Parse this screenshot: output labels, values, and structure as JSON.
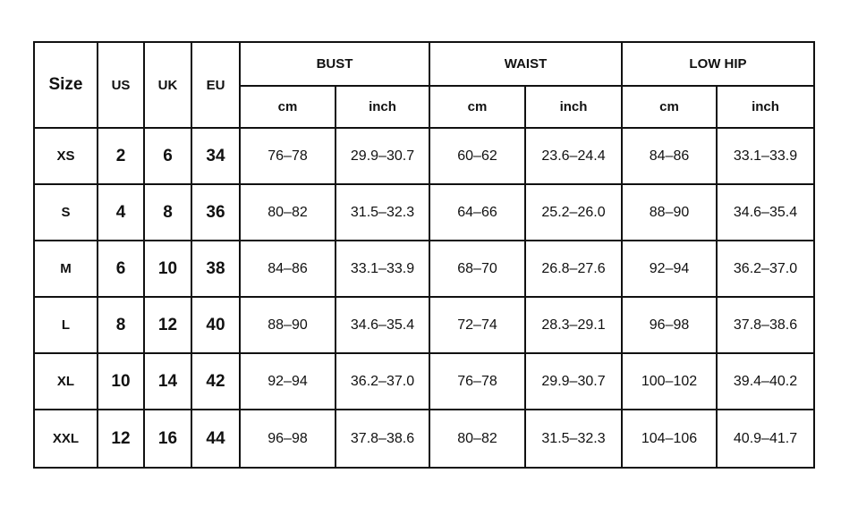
{
  "headers": {
    "size": "Size",
    "us": "US",
    "uk": "UK",
    "eu": "EU",
    "groups": [
      "BUST",
      "WAIST",
      "LOW HIP"
    ],
    "units": [
      "cm",
      "inch",
      "cm",
      "inch",
      "cm",
      "inch"
    ]
  },
  "rows": [
    {
      "size": "XS",
      "us": "2",
      "uk": "6",
      "eu": "34",
      "values": [
        "76–78",
        "29.9–30.7",
        "60–62",
        "23.6–24.4",
        "84–86",
        "33.1–33.9"
      ]
    },
    {
      "size": "S",
      "us": "4",
      "uk": "8",
      "eu": "36",
      "values": [
        "80–82",
        "31.5–32.3",
        "64–66",
        "25.2–26.0",
        "88–90",
        "34.6–35.4"
      ]
    },
    {
      "size": "M",
      "us": "6",
      "uk": "10",
      "eu": "38",
      "values": [
        "84–86",
        "33.1–33.9",
        "68–70",
        "26.8–27.6",
        "92–94",
        "36.2–37.0"
      ]
    },
    {
      "size": "L",
      "us": "8",
      "uk": "12",
      "eu": "40",
      "values": [
        "88–90",
        "34.6–35.4",
        "72–74",
        "28.3–29.1",
        "96–98",
        "37.8–38.6"
      ]
    },
    {
      "size": "XL",
      "us": "10",
      "uk": "14",
      "eu": "42",
      "values": [
        "92–94",
        "36.2–37.0",
        "76–78",
        "29.9–30.7",
        "100–102",
        "39.4–40.2"
      ]
    },
    {
      "size": "XXL",
      "us": "12",
      "uk": "16",
      "eu": "44",
      "values": [
        "96–98",
        "37.8–38.6",
        "80–82",
        "31.5–32.3",
        "104–106",
        "40.9–41.7"
      ]
    }
  ]
}
